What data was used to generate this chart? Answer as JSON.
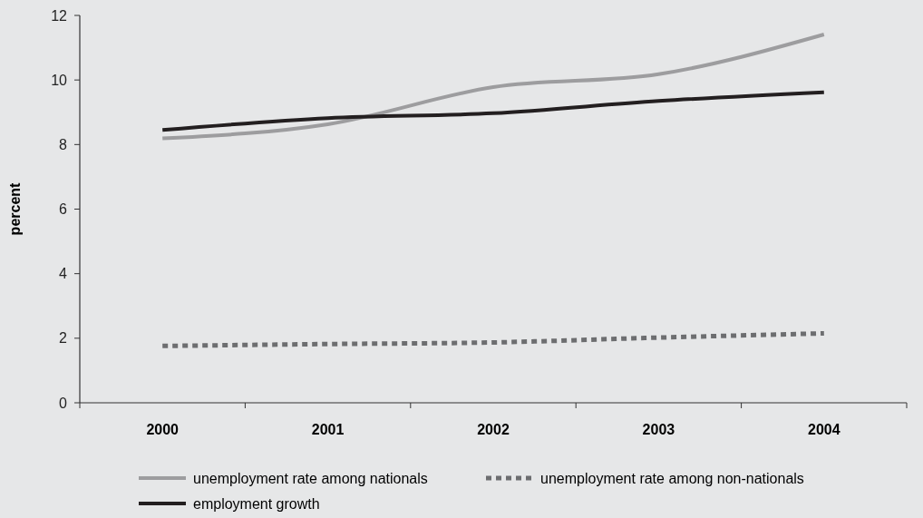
{
  "chart_data": {
    "type": "line",
    "ylabel": "percent",
    "categories": [
      "2000",
      "2001",
      "2002",
      "2003",
      "2004"
    ],
    "series": [
      {
        "name": "unemployment rate among nationals",
        "color": "#9d9d9f",
        "values": [
          8.19,
          8.63,
          9.78,
          10.18,
          11.41
        ]
      },
      {
        "name": "unemployment rate among non-nationals",
        "color": "#6d6e70",
        "line_style": "dotted",
        "values": [
          1.76,
          1.82,
          1.87,
          2.02,
          2.15
        ]
      },
      {
        "name": "employment growth",
        "color": "#231f20",
        "values": [
          8.45,
          8.82,
          8.97,
          9.35,
          9.62
        ]
      }
    ],
    "ylim": [
      0,
      12
    ],
    "yticks": [
      0,
      2,
      4,
      6,
      8,
      10,
      12
    ],
    "legend": "bottom",
    "line_style": "solid",
    "marker": "none"
  }
}
